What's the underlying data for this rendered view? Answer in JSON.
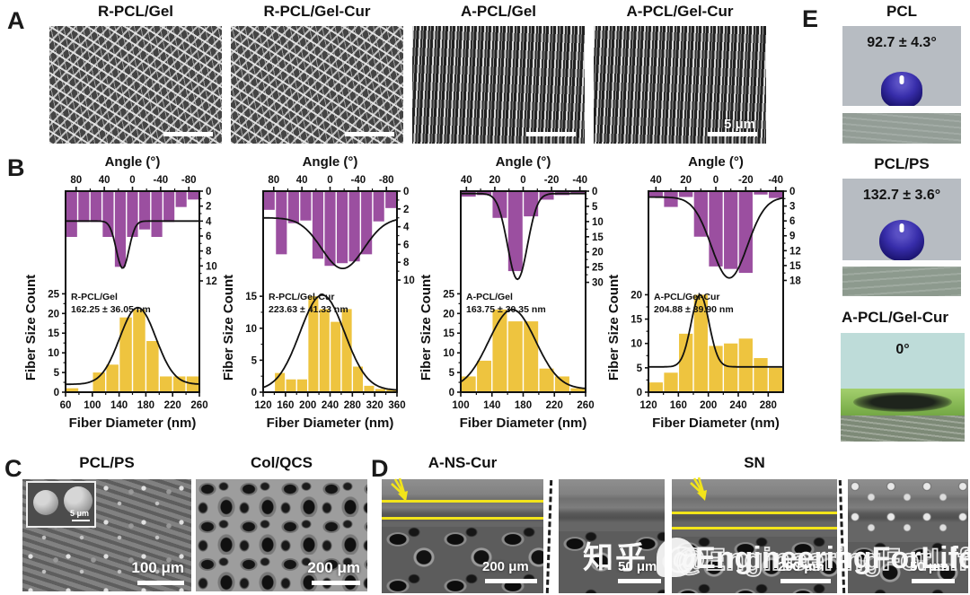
{
  "colors": {
    "purple_bar": "#9b4fa0",
    "yellow_bar": "#eec43f",
    "fit_curve": "#111111",
    "annotation_yellow": "#f2e41a",
    "droplet_blue": "#372daa"
  },
  "panels": {
    "A": {
      "label": "A",
      "images": [
        {
          "title": "R-PCL/Gel",
          "texture": "random",
          "scalebar_text": ""
        },
        {
          "title": "R-PCL/Gel-Cur",
          "texture": "random",
          "scalebar_text": ""
        },
        {
          "title": "A-PCL/Gel",
          "texture": "aligned",
          "scalebar_text": ""
        },
        {
          "title": "A-PCL/Gel-Cur",
          "texture": "aligned",
          "scalebar_text": "5 μm"
        }
      ]
    },
    "B": {
      "label": "B"
    },
    "C": {
      "label": "C",
      "images": [
        {
          "title": "PCL/PS",
          "scalebar_text": "100 μm",
          "inset_scalebar_text": "5 μm"
        },
        {
          "title": "Col/QCS",
          "scalebar_text": "200 μm"
        }
      ]
    },
    "D": {
      "label": "D",
      "titles": [
        "A-NS-Cur",
        "SN"
      ],
      "scalebars": [
        "200 μm",
        "50 μm",
        "200 μm",
        "50 μm"
      ]
    },
    "E": {
      "label": "E",
      "items": [
        {
          "title": "PCL",
          "angle": "92.7 ± 4.3°"
        },
        {
          "title": "PCL/PS",
          "angle": "132.7 ± 3.6°"
        },
        {
          "title": "A-PCL/Gel-Cur",
          "angle": "0°"
        }
      ]
    }
  },
  "watermark": {
    "cn": "知乎",
    "en": "@EngineeringForLife"
  },
  "chart_data": [
    {
      "type": "histogram-pair",
      "name": "R-PCL/Gel",
      "annotation": [
        "R-PCL/Gel",
        "162.25 ± 36.05 nm"
      ],
      "mean_nm": 162.25,
      "sd_nm": 36.05,
      "ylabel": "Fiber Size Count",
      "top": {
        "title": "Angle (°)",
        "axis_range": [
          95,
          -95
        ],
        "ticks": [
          80,
          40,
          0,
          -40,
          -80
        ],
        "count_ticks": [
          0,
          2,
          4,
          6,
          8,
          10,
          12
        ],
        "count_max": 12.6,
        "bars": [
          6,
          4,
          4,
          6,
          10,
          6,
          5,
          6,
          4,
          2,
          1
        ],
        "fit": {
          "base": 4,
          "peak": 10.3,
          "center": 14,
          "sigma": 9
        }
      },
      "bottom": {
        "title": "Fiber Diameter (nm)",
        "axis_range": [
          60,
          260
        ],
        "ticks": [
          60,
          100,
          140,
          180,
          220,
          260
        ],
        "count_ticks": [
          0,
          5,
          10,
          15,
          20,
          25
        ],
        "count_max": 26,
        "bin_start": 60,
        "bin_width": 20,
        "bars": [
          1,
          0,
          5,
          7,
          19,
          21,
          13,
          4,
          4,
          4
        ],
        "fit": {
          "base": 2,
          "peak": 21.5,
          "center": 168,
          "sigma": 27
        }
      }
    },
    {
      "type": "histogram-pair",
      "name": "R-PCL/Gel-Cur",
      "annotation": [
        "R-PCL/Gel-Cur",
        "223.63 ± 41.33 nm"
      ],
      "mean_nm": 223.63,
      "sd_nm": 41.33,
      "ylabel": "Fiber Size Count",
      "top": {
        "title": "Angle (°)",
        "axis_range": [
          95,
          -95
        ],
        "ticks": [
          80,
          40,
          0,
          -40,
          -80
        ],
        "count_ticks": [
          0,
          2,
          4,
          6,
          8,
          10
        ],
        "count_max": 10.6,
        "bars": [
          2,
          7,
          3.5,
          3.2,
          7.5,
          8.3,
          8,
          7.8,
          7,
          3.3,
          1.8
        ],
        "fit": {
          "base": 3,
          "peak": 8.7,
          "center": -18,
          "sigma": 30
        }
      },
      "bottom": {
        "title": "Fiber Diameter (nm)",
        "axis_range": [
          120,
          360
        ],
        "ticks": [
          120,
          160,
          200,
          240,
          280,
          320,
          360
        ],
        "count_ticks": [
          0,
          5,
          10,
          15
        ],
        "count_max": 16,
        "bin_start": 120,
        "bin_width": 20,
        "bars": [
          0,
          3,
          2,
          2,
          15,
          13,
          11,
          13,
          4,
          1,
          0.5,
          0.5
        ],
        "fit": {
          "base": 0.3,
          "peak": 15.2,
          "center": 226,
          "sigma": 40
        }
      }
    },
    {
      "type": "histogram-pair",
      "name": "A-PCL/Gel",
      "annotation": [
        "A-PCL/Gel",
        "163.75 ± 30.35 nm"
      ],
      "mean_nm": 163.75,
      "sd_nm": 30.35,
      "ylabel": "Fiber Size Count",
      "top": {
        "title": "Angle (°)",
        "axis_range": [
          44,
          -44
        ],
        "ticks": [
          40,
          20,
          0,
          -20,
          -40
        ],
        "count_ticks": [
          0,
          5,
          10,
          15,
          20,
          25,
          30
        ],
        "count_max": 31,
        "bars": [
          1.5,
          1,
          8.5,
          26,
          8,
          2.5,
          1,
          0.5
        ],
        "fit": {
          "base": 0.8,
          "peak": 29,
          "center": 4,
          "sigma": 7
        }
      },
      "bottom": {
        "title": "Fiber Diameter (nm)",
        "axis_range": [
          100,
          260
        ],
        "ticks": [
          100,
          140,
          180,
          220,
          260
        ],
        "count_ticks": [
          0,
          5,
          10,
          15,
          20,
          25
        ],
        "count_max": 26,
        "bin_start": 100,
        "bin_width": 20,
        "bars": [
          4,
          8,
          21,
          18,
          18,
          6,
          4,
          1
        ],
        "fit": {
          "base": 0.8,
          "peak": 21,
          "center": 166,
          "sigma": 30
        }
      }
    },
    {
      "type": "histogram-pair",
      "name": "A-PCL/Gel-Cur",
      "annotation": [
        "A-PCL/Gel-Cur",
        "204.88 ± 39.90 nm"
      ],
      "mean_nm": 204.88,
      "sd_nm": 39.9,
      "ylabel": "Fiber Size Count",
      "top": {
        "title": "Angle (°)",
        "axis_range": [
          45,
          -45
        ],
        "ticks": [
          40,
          20,
          0,
          -20,
          -40
        ],
        "count_ticks": [
          0,
          3,
          6,
          9,
          12,
          15,
          18
        ],
        "count_max": 19,
        "bars": [
          1,
          3,
          1,
          9,
          15,
          15.5,
          16.3,
          0.5,
          1.2
        ],
        "fit": {
          "base": 1.2,
          "peak": 17.5,
          "center": -9,
          "sigma": 12
        }
      },
      "bottom": {
        "title": "Fiber Diameter (nm)",
        "axis_range": [
          120,
          300
        ],
        "ticks": [
          120,
          160,
          200,
          240,
          280
        ],
        "count_ticks": [
          0,
          5,
          10,
          15,
          20
        ],
        "count_max": 21,
        "bin_start": 120,
        "bin_width": 20,
        "bars": [
          2,
          4,
          12,
          20,
          9.5,
          10,
          11,
          7,
          5
        ],
        "fit": {
          "base": 5.2,
          "peak": 20,
          "center": 189,
          "sigma": 12
        }
      }
    }
  ]
}
